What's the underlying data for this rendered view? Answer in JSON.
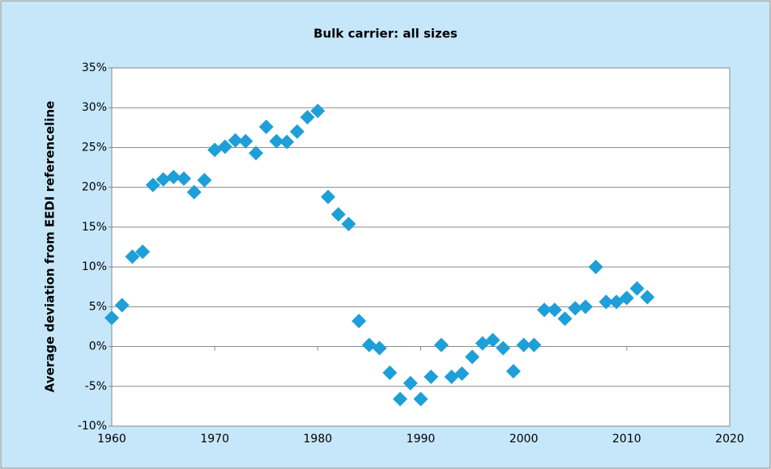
{
  "chart_data": {
    "type": "scatter",
    "title": "Bulk carrier: all sizes",
    "y_label": "Average deviation from EEDI referenceline",
    "color": "#1e9fd8",
    "grid": true,
    "x": [
      1960,
      1961,
      1962,
      1963,
      1964,
      1965,
      1966,
      1967,
      1968,
      1969,
      1970,
      1971,
      1972,
      1973,
      1974,
      1975,
      1976,
      1977,
      1978,
      1979,
      1980,
      1981,
      1982,
      1983,
      1984,
      1985,
      1986,
      1987,
      1988,
      1989,
      1990,
      1991,
      1992,
      1993,
      1994,
      1995,
      1996,
      1997,
      1998,
      1999,
      2000,
      2001,
      2002,
      2003,
      2004,
      2005,
      2006,
      2007,
      2008,
      2009,
      2010,
      2011,
      2012
    ],
    "values": [
      3.6,
      5.2,
      11.3,
      11.9,
      20.3,
      21.0,
      21.3,
      21.1,
      19.4,
      20.9,
      24.7,
      25.1,
      25.9,
      25.8,
      24.3,
      27.6,
      25.8,
      25.7,
      27.0,
      28.8,
      29.6,
      18.8,
      16.6,
      15.4,
      3.2,
      0.2,
      -0.2,
      -3.3,
      -6.6,
      -4.6,
      -6.6,
      -3.8,
      0.2,
      -3.8,
      -3.4,
      -1.3,
      0.4,
      0.8,
      -0.2,
      -3.1,
      0.2,
      0.2,
      4.6,
      4.6,
      3.5,
      4.8,
      5.0,
      10.0,
      5.6,
      5.6,
      6.1,
      7.3,
      6.2
    ],
    "xlim": [
      1960,
      2020
    ],
    "xticks": [
      1960,
      1970,
      1980,
      1990,
      2000,
      2010,
      2020
    ],
    "ylim": [
      -10,
      35
    ],
    "yticks": [
      {
        "value": -10,
        "label": "-10%"
      },
      {
        "value": -5,
        "label": "-5%"
      },
      {
        "value": 0,
        "label": "0%"
      },
      {
        "value": 5,
        "label": "5%"
      },
      {
        "value": 10,
        "label": "10%"
      },
      {
        "value": 15,
        "label": "15%"
      },
      {
        "value": 20,
        "label": "20%"
      },
      {
        "value": 25,
        "label": "25%"
      },
      {
        "value": 30,
        "label": "30%"
      },
      {
        "value": 35,
        "label": "35%"
      }
    ]
  }
}
